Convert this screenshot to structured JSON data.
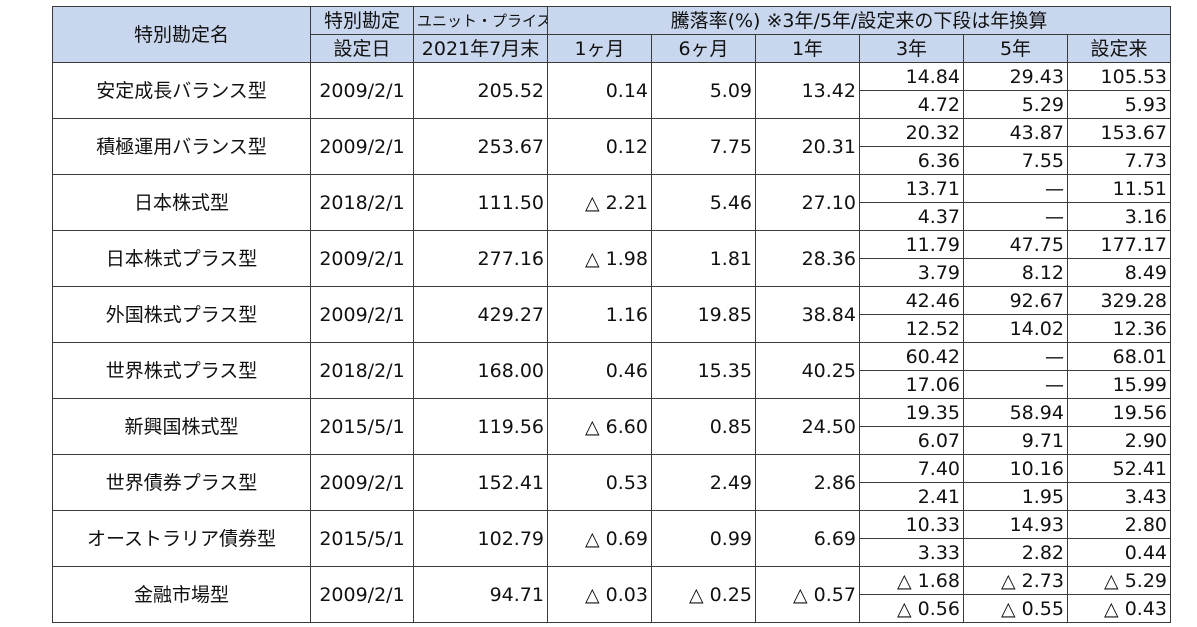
{
  "header": {
    "name": "特別勘定名",
    "date_top": "特別勘定",
    "date_bottom": "設定日",
    "price_top": "ユニット・プライス",
    "price_bottom": "2021年7月末",
    "rate_title": "騰落率(%) ※3年/5年/設定来の下段は年換算",
    "periods": [
      "1ヶ月",
      "6ヶ月",
      "1年",
      "3年",
      "5年",
      "設定来"
    ]
  },
  "rows": [
    {
      "name": "安定成長バランス型",
      "date": "2009/2/1",
      "price": "205.52",
      "m1": "0.14",
      "m6": "5.09",
      "y1": "13.42",
      "y3": "14.84",
      "y5": "29.43",
      "since": "105.53",
      "y3a": "4.72",
      "y5a": "5.29",
      "sincea": "5.93"
    },
    {
      "name": "積極運用バランス型",
      "date": "2009/2/1",
      "price": "253.67",
      "m1": "0.12",
      "m6": "7.75",
      "y1": "20.31",
      "y3": "20.32",
      "y5": "43.87",
      "since": "153.67",
      "y3a": "6.36",
      "y5a": "7.55",
      "sincea": "7.73"
    },
    {
      "name": "日本株式型",
      "date": "2018/2/1",
      "price": "111.50",
      "m1": "△ 2.21",
      "m6": "5.46",
      "y1": "27.10",
      "y3": "13.71",
      "y5": "—",
      "since": "11.51",
      "y3a": "4.37",
      "y5a": "—",
      "sincea": "3.16"
    },
    {
      "name": "日本株式プラス型",
      "date": "2009/2/1",
      "price": "277.16",
      "m1": "△ 1.98",
      "m6": "1.81",
      "y1": "28.36",
      "y3": "11.79",
      "y5": "47.75",
      "since": "177.17",
      "y3a": "3.79",
      "y5a": "8.12",
      "sincea": "8.49"
    },
    {
      "name": "外国株式プラス型",
      "date": "2009/2/1",
      "price": "429.27",
      "m1": "1.16",
      "m6": "19.85",
      "y1": "38.84",
      "y3": "42.46",
      "y5": "92.67",
      "since": "329.28",
      "y3a": "12.52",
      "y5a": "14.02",
      "sincea": "12.36"
    },
    {
      "name": "世界株式プラス型",
      "date": "2018/2/1",
      "price": "168.00",
      "m1": "0.46",
      "m6": "15.35",
      "y1": "40.25",
      "y3": "60.42",
      "y5": "—",
      "since": "68.01",
      "y3a": "17.06",
      "y5a": "—",
      "sincea": "15.99"
    },
    {
      "name": "新興国株式型",
      "date": "2015/5/1",
      "price": "119.56",
      "m1": "△ 6.60",
      "m6": "0.85",
      "y1": "24.50",
      "y3": "19.35",
      "y5": "58.94",
      "since": "19.56",
      "y3a": "6.07",
      "y5a": "9.71",
      "sincea": "2.90"
    },
    {
      "name": "世界債券プラス型",
      "date": "2009/2/1",
      "price": "152.41",
      "m1": "0.53",
      "m6": "2.49",
      "y1": "2.86",
      "y3": "7.40",
      "y5": "10.16",
      "since": "52.41",
      "y3a": "2.41",
      "y5a": "1.95",
      "sincea": "3.43"
    },
    {
      "name": "オーストラリア債券型",
      "date": "2015/5/1",
      "price": "102.79",
      "m1": "△ 0.69",
      "m6": "0.99",
      "y1": "6.69",
      "y3": "10.33",
      "y5": "14.93",
      "since": "2.80",
      "y3a": "3.33",
      "y5a": "2.82",
      "sincea": "0.44"
    },
    {
      "name": "金融市場型",
      "date": "2009/2/1",
      "price": "94.71",
      "m1": "△ 0.03",
      "m6": "△ 0.25",
      "y1": "△ 0.57",
      "y3": "△ 1.68",
      "y5": "△ 2.73",
      "since": "△ 5.29",
      "y3a": "△ 0.56",
      "y5a": "△ 0.55",
      "sincea": "△ 0.43"
    }
  ]
}
